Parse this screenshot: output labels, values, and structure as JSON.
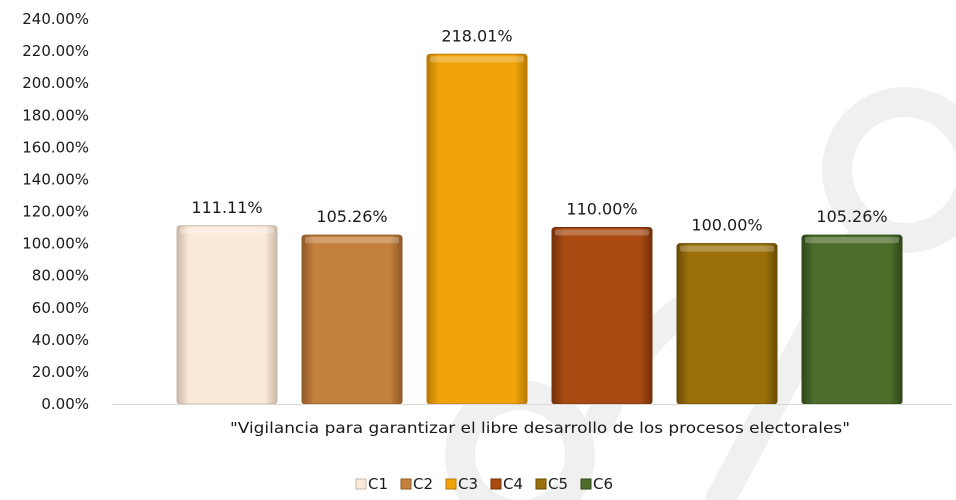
{
  "chart_data": {
    "type": "bar",
    "category": "\"Vigilancia para garantizar el libre desarrollo de los procesos electorales\"",
    "series": [
      {
        "name": "C1",
        "value": 111.11,
        "label": "111.11%",
        "color": "#fbe9d9",
        "edge": "#c9b8a8"
      },
      {
        "name": "C2",
        "value": 105.26,
        "label": "105.26%",
        "color": "#c4813e",
        "edge": "#8f5a26"
      },
      {
        "name": "C3",
        "value": 218.01,
        "label": "218.01%",
        "color": "#f0a30a",
        "edge": "#b87a05"
      },
      {
        "name": "C4",
        "value": 110.0,
        "label": "110.00%",
        "color": "#a94a12",
        "edge": "#73300a"
      },
      {
        "name": "C5",
        "value": 100.0,
        "label": "100.00%",
        "color": "#9b7008",
        "edge": "#6a4c04"
      },
      {
        "name": "C6",
        "value": 105.26,
        "label": "105.26%",
        "color": "#4c6e2a",
        "edge": "#2f4719"
      }
    ],
    "y_ticks": [
      "0.00%",
      "20.00%",
      "40.00%",
      "60.00%",
      "80.00%",
      "100.00%",
      "120.00%",
      "140.00%",
      "160.00%",
      "180.00%",
      "200.00%",
      "220.00%",
      "240.00%"
    ],
    "ylim": [
      0,
      240
    ],
    "grid": false,
    "legend_position": "bottom"
  }
}
